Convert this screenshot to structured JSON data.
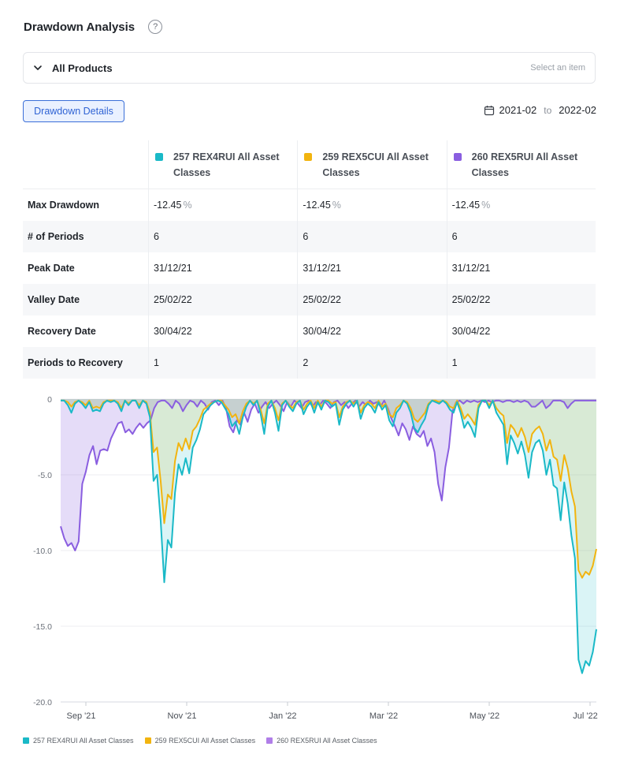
{
  "header": {
    "title": "Drawdown Analysis",
    "help_icon": "question-circle-icon"
  },
  "product_select": {
    "label": "All Products",
    "placeholder": "Select an item"
  },
  "toolbar": {
    "details_label": "Drawdown Details"
  },
  "date_range": {
    "start": "2021-02",
    "separator": "to",
    "end": "2022-02"
  },
  "table": {
    "columns": [
      {
        "name": "257 REX4RUI All Asset Classes",
        "color": "#1ab9c7"
      },
      {
        "name": "259 REX5CUI All Asset Classes",
        "color": "#f2b40f"
      },
      {
        "name": "260 REX5RUI All Asset Classes",
        "color": "#8a5ee0"
      }
    ],
    "rows": [
      {
        "label": "Max Drawdown",
        "values": [
          "-12.45",
          "-12.45",
          "-12.45"
        ],
        "unit": "%"
      },
      {
        "label": "# of Periods",
        "values": [
          "6",
          "6",
          "6"
        ]
      },
      {
        "label": "Peak Date",
        "values": [
          "31/12/21",
          "31/12/21",
          "31/12/21"
        ]
      },
      {
        "label": "Valley Date",
        "values": [
          "25/02/22",
          "25/02/22",
          "25/02/22"
        ]
      },
      {
        "label": "Recovery Date",
        "values": [
          "30/04/22",
          "30/04/22",
          "30/04/22"
        ]
      },
      {
        "label": "Periods to Recovery",
        "values": [
          "1",
          "2",
          "1"
        ]
      }
    ]
  },
  "chart_data": {
    "type": "area",
    "x_ticks": [
      "Sep '21",
      "Nov '21",
      "Jan '22",
      "Mar '22",
      "May '22",
      "Jul '22"
    ],
    "y_ticks": [
      "0",
      "-5.0",
      "-10.0",
      "-15.0",
      "-20.0"
    ],
    "ylim": [
      -20,
      0
    ],
    "grid": true,
    "legend_position": "bottom-left",
    "series": [
      {
        "name": "257 REX4RUI All Asset Classes",
        "color": "#1ab9c7",
        "values": [
          -0.1,
          -0.1,
          -0.4,
          -0.9,
          -0.3,
          -0.1,
          -0.3,
          -0.6,
          -0.2,
          -0.8,
          -0.7,
          -0.8,
          -0.3,
          -0.1,
          -0.2,
          -0.1,
          -0.3,
          -0.8,
          -0.1,
          -0.4,
          -0.1,
          -0.1,
          -0.6,
          -0.1,
          -0.3,
          -1.2,
          -5.4,
          -5.0,
          -8.0,
          -12.1,
          -9.3,
          -9.8,
          -6.2,
          -4.3,
          -5.0,
          -3.9,
          -4.9,
          -3.2,
          -2.7,
          -2.0,
          -1.0,
          -0.7,
          -0.4,
          -0.2,
          -0.1,
          -0.2,
          -0.6,
          -1.0,
          -1.8,
          -1.5,
          -2.3,
          -1.2,
          -0.5,
          -0.1,
          -0.4,
          -0.1,
          -1.0,
          -2.3,
          -0.5,
          -0.1,
          -0.9,
          -2.1,
          -0.4,
          -0.1,
          -0.5,
          -0.8,
          -0.3,
          -0.1,
          -1.0,
          -0.5,
          -0.2,
          -0.9,
          -0.2,
          -0.7,
          -0.1,
          -0.2,
          -0.5,
          -0.3,
          -1.7,
          -0.7,
          -0.3,
          -0.1,
          -0.5,
          -0.1,
          -1.3,
          -0.6,
          -0.3,
          -0.5,
          -0.9,
          -0.2,
          -0.7,
          -0.4,
          -1.4,
          -1.8,
          -0.9,
          -0.6,
          -0.1,
          -0.3,
          -0.9,
          -1.9,
          -2.2,
          -1.7,
          -1.3,
          -0.4,
          -0.1,
          -0.2,
          -0.3,
          -0.1,
          -0.3,
          -0.7,
          -0.9,
          -0.2,
          -0.9,
          -1.9,
          -1.5,
          -1.9,
          -2.5,
          -0.6,
          -0.1,
          -0.1,
          -0.6,
          -0.1,
          -0.9,
          -1.3,
          -1.7,
          -4.3,
          -2.4,
          -2.9,
          -3.6,
          -2.8,
          -3.7,
          -5.2,
          -3.5,
          -2.9,
          -2.7,
          -3.4,
          -5.0,
          -4.0,
          -5.7,
          -5.9,
          -8.0,
          -5.5,
          -6.9,
          -9.0,
          -10.5,
          -17.2,
          -18.1,
          -17.3,
          -17.6,
          -16.7,
          -15.2
        ]
      },
      {
        "name": "259 REX5CUI All Asset Classes",
        "color": "#f2b40f",
        "values": [
          -0.1,
          -0.1,
          -0.2,
          -0.5,
          -0.2,
          -0.1,
          -0.2,
          -0.4,
          -0.1,
          -0.6,
          -0.5,
          -0.6,
          -0.2,
          -0.1,
          -0.1,
          -0.1,
          -0.2,
          -0.6,
          -0.1,
          -0.3,
          -0.1,
          -0.1,
          -0.4,
          -0.1,
          -0.2,
          -0.9,
          -3.5,
          -3.2,
          -5.4,
          -8.2,
          -6.3,
          -6.6,
          -4.1,
          -2.9,
          -3.4,
          -2.6,
          -3.3,
          -2.1,
          -1.8,
          -1.3,
          -0.7,
          -0.5,
          -0.3,
          -0.2,
          -0.1,
          -0.1,
          -0.4,
          -0.7,
          -1.2,
          -1.0,
          -1.6,
          -0.8,
          -0.3,
          -0.1,
          -0.3,
          -0.1,
          -0.7,
          -1.6,
          -0.3,
          -0.1,
          -0.6,
          -1.4,
          -0.3,
          -0.1,
          -0.4,
          -0.6,
          -0.2,
          -0.1,
          -0.7,
          -0.3,
          -0.1,
          -0.6,
          -0.1,
          -0.5,
          -0.1,
          -0.1,
          -0.3,
          -0.2,
          -1.2,
          -0.5,
          -0.2,
          -0.1,
          -0.3,
          -0.1,
          -0.9,
          -0.4,
          -0.2,
          -0.3,
          -0.6,
          -0.1,
          -0.5,
          -0.3,
          -1.0,
          -1.2,
          -0.6,
          -0.4,
          -0.1,
          -0.2,
          -0.6,
          -1.3,
          -1.5,
          -1.2,
          -0.9,
          -0.3,
          -0.1,
          -0.1,
          -0.2,
          -0.1,
          -0.2,
          -0.5,
          -0.6,
          -0.1,
          -0.6,
          -1.3,
          -1.0,
          -1.3,
          -1.7,
          -0.4,
          -0.1,
          -0.1,
          -0.4,
          -0.1,
          -0.6,
          -0.9,
          -1.1,
          -2.9,
          -1.7,
          -2.0,
          -2.5,
          -1.9,
          -2.5,
          -3.5,
          -2.3,
          -2.0,
          -1.8,
          -2.3,
          -3.4,
          -2.7,
          -3.8,
          -4.0,
          -5.4,
          -3.7,
          -4.6,
          -6.1,
          -7.1,
          -11.3,
          -11.8,
          -11.4,
          -11.6,
          -11.0,
          -9.9
        ]
      },
      {
        "name": "260 REX5RUI All Asset Classes",
        "color": "#8a5ee0",
        "values": [
          -8.4,
          -9.2,
          -9.7,
          -9.5,
          -10.0,
          -9.4,
          -5.6,
          -4.8,
          -3.7,
          -3.1,
          -4.3,
          -3.4,
          -3.3,
          -3.4,
          -2.6,
          -2.1,
          -1.6,
          -1.5,
          -2.2,
          -2.0,
          -2.3,
          -1.9,
          -1.6,
          -1.9,
          -1.6,
          -1.4,
          -0.6,
          -0.2,
          -0.1,
          -0.1,
          -0.3,
          -0.6,
          -0.1,
          -0.3,
          -0.8,
          -0.4,
          -0.1,
          -0.2,
          -0.5,
          -0.1,
          -0.3,
          -0.7,
          -0.2,
          -0.1,
          -0.4,
          -0.1,
          -0.6,
          -1.8,
          -2.2,
          -1.4,
          -1.7,
          -0.9,
          -1.5,
          -0.7,
          -0.3,
          -0.9,
          -0.5,
          -0.2,
          -0.6,
          -0.3,
          -0.1,
          -0.4,
          -0.8,
          -0.2,
          -0.5,
          -0.1,
          -0.3,
          -0.6,
          -0.2,
          -0.1,
          -0.5,
          -0.2,
          -0.4,
          -0.1,
          -0.3,
          -0.6,
          -0.2,
          -0.1,
          -0.4,
          -0.2,
          -0.6,
          -0.3,
          -0.1,
          -0.5,
          -0.2,
          -0.4,
          -0.1,
          -0.3,
          -0.2,
          -0.5,
          -0.1,
          -0.6,
          -1.3,
          -1.8,
          -2.4,
          -1.6,
          -2.0,
          -2.7,
          -1.8,
          -2.3,
          -2.5,
          -2.1,
          -3.1,
          -2.6,
          -3.5,
          -5.6,
          -6.7,
          -4.5,
          -3.2,
          -0.8,
          -0.2,
          -0.1,
          -0.3,
          -0.1,
          -0.2,
          -0.1,
          -0.2,
          -0.1,
          -0.2,
          -0.1,
          -0.2,
          -0.1,
          -0.1,
          -0.2,
          -0.1,
          -0.1,
          -0.2,
          -0.1,
          -0.2,
          -0.1,
          -0.2,
          -0.5,
          -0.5,
          -0.3,
          -0.1,
          -0.6,
          -0.4,
          -0.1,
          -0.1,
          -0.1,
          -0.2,
          -0.6,
          -0.3,
          -0.1,
          -0.1,
          -0.1,
          -0.1,
          -0.1,
          -0.1,
          -0.1
        ]
      }
    ]
  }
}
